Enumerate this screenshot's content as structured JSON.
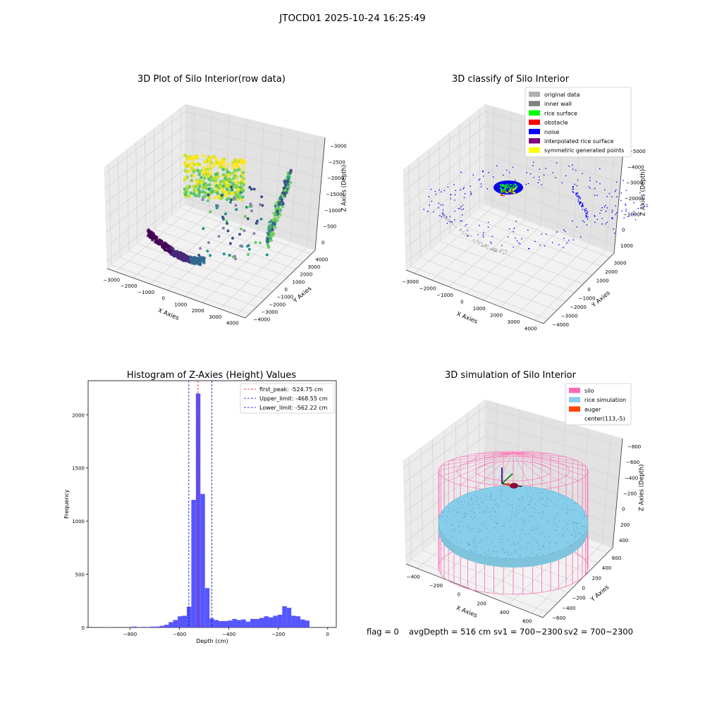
{
  "suptitle": "JTOCD01 2025-10-24 16:25:49",
  "status": {
    "flag": "flag = 0",
    "avg_depth": "avgDepth = 516 cm",
    "sv1": "sv1 = 700~2300",
    "sv2": "sv2 = 700~2300"
  },
  "colors": {
    "histogram": "#4d4dff",
    "first_peak": "#ff0000",
    "limits": "#0000cc",
    "silo": "#ff69b4",
    "rice_simulation": "#87ceeb",
    "auger": "#ff4500",
    "original": "#b0b0b0",
    "inner_wall": "#808080",
    "rice_surface": "#00ff00",
    "obstacle": "#ff0000",
    "noise": "#0000ff",
    "interpolated": "#800080",
    "symmetric": "#ffff00"
  },
  "chart_data": [
    {
      "type": "scatter",
      "title": "3D Plot of Silo Interior(row data)",
      "xlabel": "X Axies",
      "ylabel": "Y Axies",
      "zlabel": "Z Axies (Depth)",
      "x_ticks": [
        "−3000",
        "−2000",
        "−1000",
        "0",
        "1000",
        "2000",
        "3000",
        "4000"
      ],
      "y_ticks": [
        "−4000",
        "−3000",
        "−2000",
        "−1000",
        "0",
        "1000",
        "2000",
        "3000",
        "4000"
      ],
      "z_ticks": [
        "0",
        "−500",
        "−1000",
        "−1500",
        "−2000",
        "−2500",
        "−3000"
      ],
      "colormap": "viridis",
      "clusters": [
        {
          "region": "top center",
          "depth_range": [
            -900,
            -300
          ],
          "color": "yellow-green"
        },
        {
          "region": "right wall",
          "depth_range": [
            -3000,
            -700
          ],
          "color": "blue-green"
        },
        {
          "region": "bottom-left arc",
          "depth_range": [
            -3200,
            -2600
          ],
          "color": "purple"
        }
      ]
    },
    {
      "type": "scatter",
      "title": "3D classify of Silo Interior",
      "xlabel": "X Axies",
      "ylabel": "Y Axies",
      "zlabel": "Z Axies (Depth)",
      "x_ticks": [
        "−3000",
        "−2000",
        "−1000",
        "0",
        "1000",
        "2000",
        "3000",
        "4000"
      ],
      "y_ticks": [
        "−4000",
        "−3000",
        "−2000",
        "−1000",
        "0",
        "1000",
        "2000",
        "3000"
      ],
      "z_ticks": [
        "1000",
        "0",
        "−1000",
        "−2000",
        "−3000",
        "−4000",
        "−5000"
      ],
      "legend": [
        {
          "label": "original data",
          "color": "#b0b0b0"
        },
        {
          "label": "inner wall",
          "color": "#808080"
        },
        {
          "label": "rice surface",
          "color": "#00ff00"
        },
        {
          "label": "obstacle",
          "color": "#ff0000"
        },
        {
          "label": "noise",
          "color": "#0000ff"
        },
        {
          "label": "interpolated rice surface",
          "color": "#800080"
        },
        {
          "label": "symmetric generated points",
          "color": "#ffff00"
        }
      ],
      "legend_position": "top-right"
    },
    {
      "type": "bar",
      "title": "Histogram of Z-Axies (Height) Values",
      "xlabel": "Depth (cm)",
      "ylabel": "Frequency",
      "xlim": [
        -970,
        35
      ],
      "ylim": [
        0,
        2320
      ],
      "x_ticks": [
        -800,
        -600,
        -400,
        -200,
        0
      ],
      "x_tick_labels": [
        "−800",
        "−600",
        "−400",
        "−200",
        "0"
      ],
      "y_ticks": [
        0,
        500,
        1000,
        1500,
        2000
      ],
      "y_tick_labels": [
        "0",
        "500",
        "1000",
        "1500",
        "2000"
      ],
      "bin_start": -920,
      "bin_width": 18.4,
      "counts": [
        0,
        2,
        0,
        0,
        0,
        0,
        0,
        8,
        0,
        5,
        5,
        8,
        8,
        15,
        25,
        50,
        70,
        105,
        110,
        195,
        1200,
        2200,
        1255,
        370,
        85,
        70,
        60,
        60,
        65,
        80,
        70,
        75,
        55,
        80,
        80,
        90,
        105,
        95,
        110,
        120,
        200,
        185,
        110,
        105,
        75,
        65
      ],
      "lines": [
        {
          "label": "first_peak: -524.75 cm",
          "value": -524.75,
          "color": "#ff0000"
        },
        {
          "label": "Upper_limit: -468.55 cm",
          "value": -468.55,
          "color": "#0000cc"
        },
        {
          "label": "Lower_limit: -562.22 cm",
          "value": -562.22,
          "color": "#0000cc"
        }
      ],
      "legend_position": "top-right"
    },
    {
      "type": "scatter",
      "title": "3D simulation of Silo Interior",
      "xlabel": "X Axies",
      "ylabel": "Y Axies",
      "zlabel": "Z Axies (Depth)",
      "x_ticks": [
        "−400",
        "−200",
        "0",
        "200",
        "400",
        "600"
      ],
      "y_ticks": [
        "−600",
        "−400",
        "−200",
        "0",
        "200",
        "400",
        "600"
      ],
      "z_ticks": [
        "400",
        "200",
        "0",
        "−200",
        "−400",
        "−600",
        "−800"
      ],
      "legend": [
        {
          "label": "silo",
          "color": "#ff69b4"
        },
        {
          "label": "rice simulation",
          "color": "#87ceeb"
        },
        {
          "label": "auger",
          "color": "#ff4500"
        },
        {
          "label": "center(113,-5)",
          "color": ""
        }
      ],
      "legend_position": "top-right"
    }
  ]
}
